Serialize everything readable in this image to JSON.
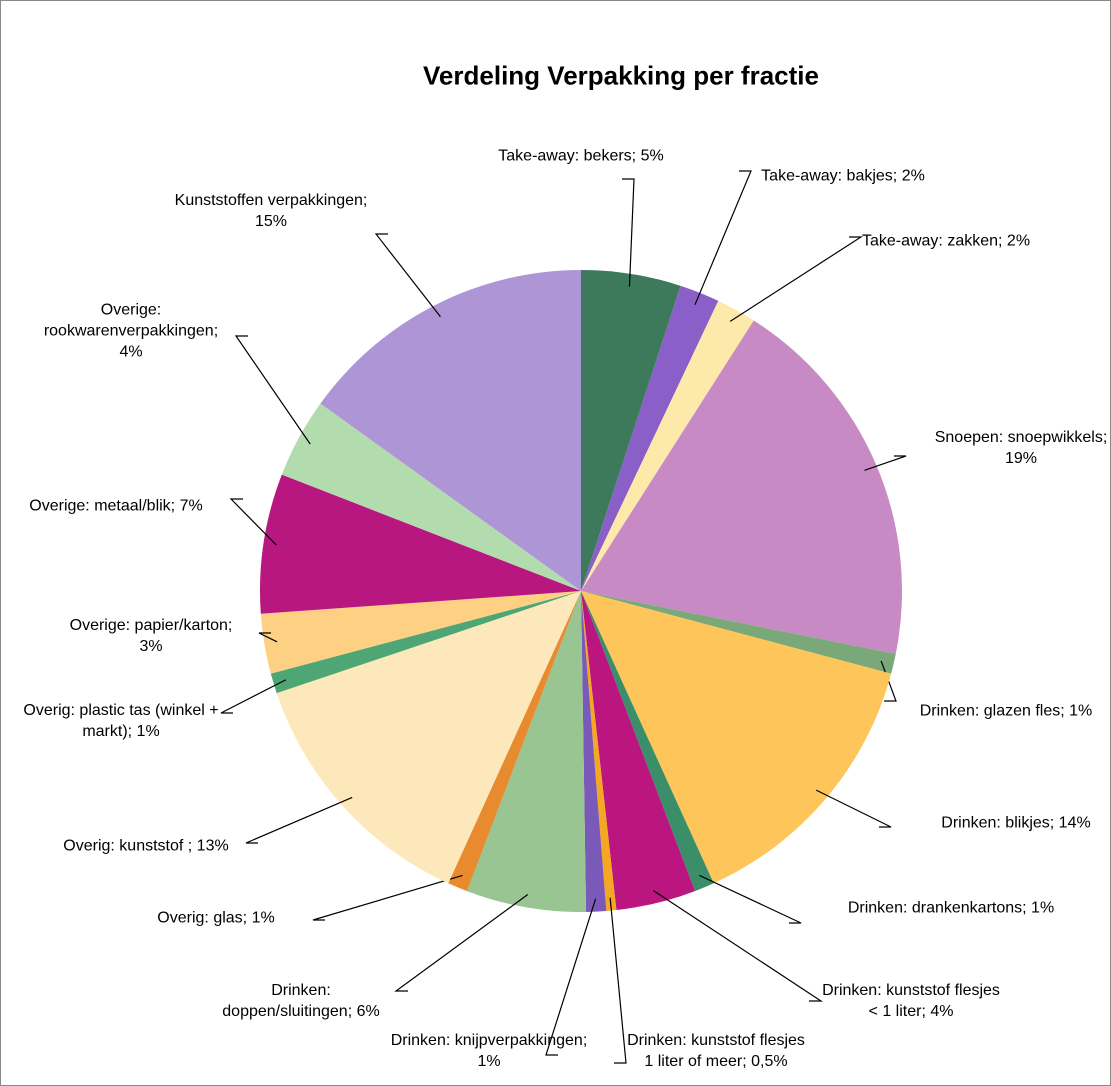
{
  "chart_data": {
    "type": "pie",
    "title": "Verdeling Verpakking per fractie",
    "categories": [
      "Take-away: bekers;",
      "Take-away: bakjes;",
      "Take-away: zakken;",
      "Snoepen: snoepwikkels;",
      "Drinken: glazen fles;",
      "Drinken: blikjes;",
      "Drinken: drankenkartons;",
      "Drinken: kunststof flesjes < 1 liter;",
      "Drinken: kunststof flesjes 1 liter of meer;",
      "Drinken: knijpverpakkingen;",
      "Drinken: doppen/sluitingen;",
      "Overig: glas;",
      "Overig: kunststof ;",
      "Overig: plastic tas (winkel + markt);",
      "Overige: papier/karton;",
      "Overige: metaal/blik;",
      "Overige: rookwarenverpakkingen;",
      "Kunststoffen verpakkingen;"
    ],
    "values": [
      5,
      2,
      2,
      19,
      1,
      14,
      1,
      4,
      0.5,
      1,
      6,
      1,
      13,
      1,
      3,
      7,
      4,
      15
    ],
    "value_labels": [
      "5%",
      "2%",
      "2%",
      "19%",
      "1%",
      "14%",
      "1%",
      "4%",
      "0,5%",
      "1%",
      "6%",
      "1%",
      "13%",
      "1%",
      "3%",
      "7%",
      "4%",
      "15%"
    ],
    "colors": [
      "#3d7a5c",
      "#8b5fc8",
      "#fde9a9",
      "#c88ac5",
      "#7aa878",
      "#fec55a",
      "#3a8f6a",
      "#bb167f",
      "#f5a623",
      "#7a5ab8",
      "#98c592",
      "#e88a2e",
      "#fde8bb",
      "#4ea675",
      "#fdd083",
      "#b8177f",
      "#b2dbae",
      "#ae95d6"
    ]
  }
}
